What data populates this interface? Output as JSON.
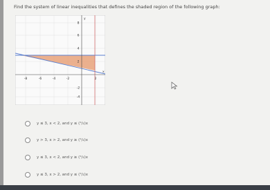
{
  "question": "Find the system of linear inequalities that defines the shaded region of the following graph:",
  "graph": {
    "x_tick_labels": [
      "-8",
      "-6",
      "-4",
      "-2",
      "2"
    ],
    "y_tick_labels": [
      "8",
      "6",
      "4",
      "2",
      "-2",
      "-4"
    ],
    "x_axis_label": "x",
    "y_axis_label": "y"
  },
  "options": [
    "y ≤ 3, x < 2, and y ≤ (¹/₂)x",
    "y > 3, x > 2, and y ≥ (¹/₂)x",
    "y ≤ 3, x < 2, and y ≥ (¹/₂)x",
    "y ≤ 3, x > 2, and y ≤ (¹/₂)x"
  ]
}
